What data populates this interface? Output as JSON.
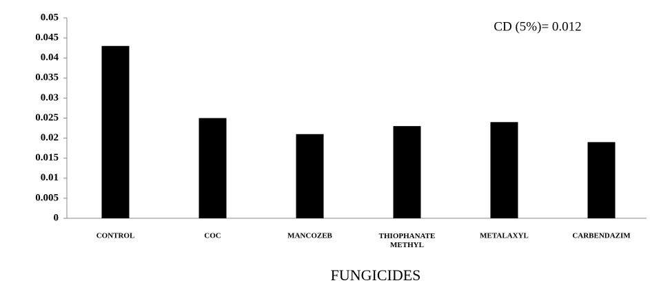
{
  "chart_data": {
    "type": "bar",
    "categories": [
      "CONTROL",
      "COC",
      "MANCOZEB",
      "THIOPHANATE METHYL",
      "METALAXYL",
      "CARBENDAZIM"
    ],
    "values": [
      0.043,
      0.025,
      0.021,
      0.023,
      0.024,
      0.019
    ],
    "color": "#000000",
    "ylim": [
      0,
      0.05
    ],
    "yticks": [
      0,
      0.005,
      0.01,
      0.015,
      0.02,
      0.025,
      0.03,
      0.035,
      0.04,
      0.045,
      0.05
    ],
    "annotation": "CD (5%)= 0.012",
    "x_label": "FUNGICIDES",
    "grid": false
  }
}
